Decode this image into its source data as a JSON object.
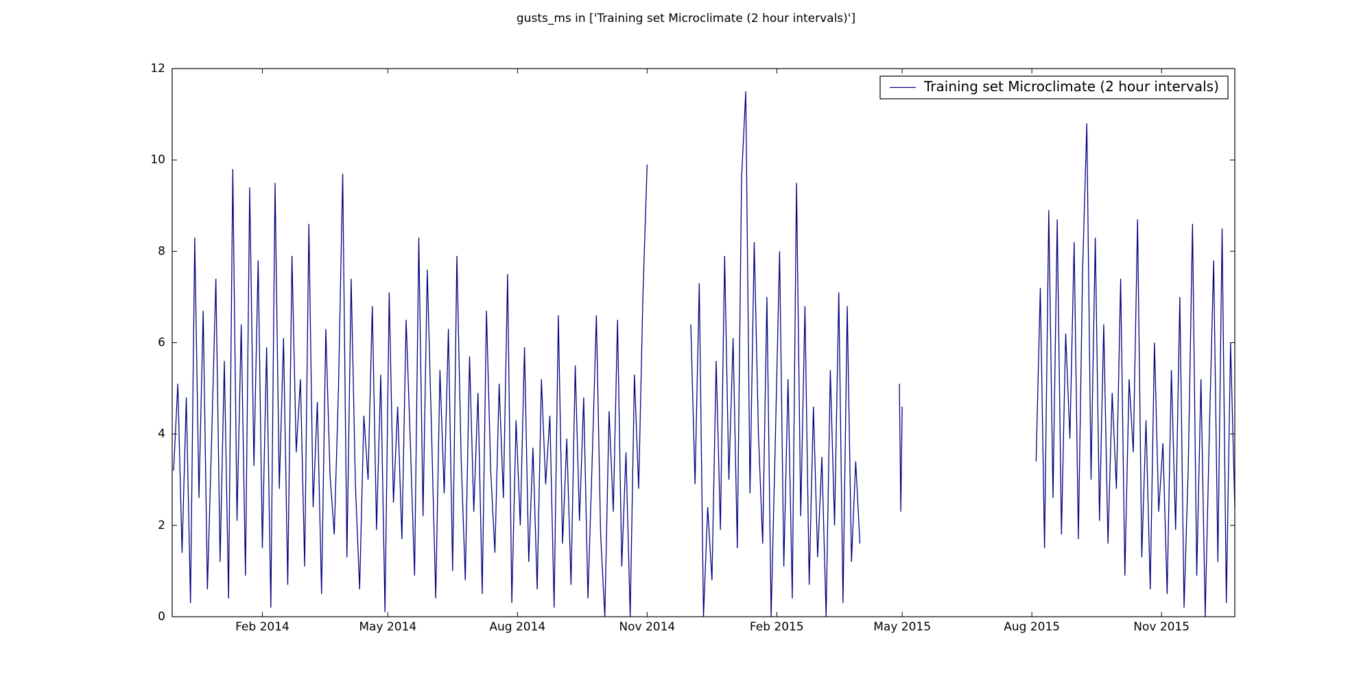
{
  "chart_data": {
    "type": "line",
    "title": "gusts_ms in ['Training set Microclimate (2 hour intervals)']",
    "x": [
      -63,
      -60,
      -57,
      -54,
      -51,
      -48,
      -45,
      -42,
      -39,
      -36,
      -33,
      -30,
      -27,
      -24,
      -21,
      -18,
      -15,
      -12,
      -9,
      -6,
      -3,
      0,
      3,
      6,
      9,
      12,
      15,
      18,
      21,
      24,
      27,
      30,
      33,
      36,
      39,
      42,
      45,
      48,
      51,
      54,
      57,
      60,
      63,
      66,
      69,
      72,
      75,
      78,
      81,
      84,
      87,
      90,
      93,
      96,
      99,
      102,
      105,
      108,
      111,
      114,
      117,
      120,
      123,
      126,
      129,
      132,
      135,
      138,
      141,
      144,
      147,
      150,
      153,
      156,
      159,
      162,
      165,
      168,
      171,
      174,
      177,
      180,
      183,
      186,
      189,
      192,
      195,
      198,
      201,
      204,
      207,
      210,
      213,
      216,
      219,
      222,
      225,
      228,
      231,
      234,
      237,
      240,
      243,
      246,
      249,
      252,
      255,
      258,
      261,
      264,
      267,
      270,
      273,
      290,
      304,
      307,
      310,
      313,
      316,
      319,
      322,
      325,
      328,
      331,
      334,
      337,
      340,
      343,
      346,
      349,
      352,
      355,
      358,
      361,
      364,
      367,
      370,
      373,
      376,
      379,
      382,
      385,
      388,
      391,
      394,
      397,
      400,
      403,
      406,
      409,
      412,
      415,
      418,
      421,
      424,
      440,
      452,
      453,
      454,
      500,
      549,
      552,
      555,
      558,
      561,
      564,
      567,
      570,
      573,
      576,
      579,
      582,
      585,
      588,
      591,
      594,
      597,
      600,
      603,
      606,
      609,
      612,
      615,
      618,
      621,
      624,
      627,
      630,
      633,
      636,
      639,
      642,
      645,
      648,
      651,
      654,
      657,
      660,
      663,
      666,
      669,
      672,
      675,
      678,
      681,
      684,
      687,
      690
    ],
    "series": [
      {
        "name": "Training set Microclimate (2 hour intervals)",
        "color": "#000080",
        "values": [
          3.2,
          5.1,
          1.4,
          4.8,
          0.3,
          8.3,
          2.6,
          6.7,
          0.6,
          3.9,
          7.4,
          1.2,
          5.6,
          0.4,
          9.8,
          2.1,
          6.4,
          0.9,
          9.4,
          3.3,
          7.8,
          1.5,
          5.9,
          0.2,
          9.5,
          2.8,
          6.1,
          0.7,
          7.9,
          3.6,
          5.2,
          1.1,
          8.6,
          2.4,
          4.7,
          0.5,
          6.3,
          3.1,
          1.8,
          5.0,
          9.7,
          1.3,
          7.4,
          2.9,
          0.6,
          4.4,
          3.0,
          6.8,
          1.9,
          5.3,
          0.1,
          7.1,
          2.5,
          4.6,
          1.7,
          6.5,
          3.8,
          0.9,
          8.3,
          2.2,
          7.6,
          4.1,
          0.4,
          5.4,
          2.7,
          6.3,
          1.0,
          7.9,
          3.5,
          0.8,
          5.7,
          2.3,
          4.9,
          0.5,
          6.7,
          3.2,
          1.4,
          5.1,
          2.6,
          7.5,
          0.3,
          4.3,
          2.0,
          5.9,
          1.2,
          3.7,
          0.6,
          5.2,
          2.9,
          4.4,
          0.2,
          6.6,
          1.6,
          3.9,
          0.7,
          5.5,
          2.1,
          4.8,
          0.4,
          3.4,
          6.6,
          1.8,
          0.0,
          4.5,
          2.3,
          6.5,
          1.1,
          3.6,
          0.0,
          5.3,
          2.8,
          7.0,
          9.9,
          null,
          6.4,
          2.9,
          7.3,
          0.0,
          2.4,
          0.8,
          5.6,
          1.9,
          7.9,
          3.0,
          6.1,
          1.5,
          9.6,
          11.5,
          2.7,
          8.2,
          4.0,
          1.6,
          7.0,
          0.0,
          3.9,
          8.0,
          1.1,
          5.2,
          0.4,
          9.5,
          2.2,
          6.8,
          0.7,
          4.6,
          1.3,
          3.5,
          0.0,
          5.4,
          2.0,
          7.1,
          0.3,
          6.8,
          1.2,
          3.4,
          1.6,
          null,
          5.1,
          2.3,
          4.6,
          null,
          3.4,
          7.2,
          1.5,
          8.9,
          2.6,
          8.7,
          1.8,
          6.2,
          3.9,
          8.2,
          1.7,
          7.6,
          10.8,
          3.0,
          8.3,
          2.1,
          6.4,
          1.6,
          4.9,
          2.8,
          7.4,
          0.9,
          5.2,
          3.6,
          8.7,
          1.3,
          4.3,
          0.6,
          6.0,
          2.3,
          3.8,
          0.5,
          5.4,
          1.9,
          7.0,
          0.2,
          3.3,
          8.6,
          0.9,
          5.2,
          0.0,
          4.1,
          7.8,
          1.2,
          8.5,
          0.3,
          6.0,
          2.4
        ]
      }
    ],
    "xlim": [
      -64,
      690
    ],
    "xticks": [
      {
        "value": 0,
        "label": "Feb 2014"
      },
      {
        "value": 89,
        "label": "May 2014"
      },
      {
        "value": 181,
        "label": "Aug 2014"
      },
      {
        "value": 273,
        "label": "Nov 2014"
      },
      {
        "value": 365,
        "label": "Feb 2015"
      },
      {
        "value": 454,
        "label": "May 2015"
      },
      {
        "value": 546,
        "label": "Aug 2015"
      },
      {
        "value": 638,
        "label": "Nov 2015"
      }
    ],
    "ylim": [
      0,
      12
    ],
    "yticks": [
      0,
      2,
      4,
      6,
      8,
      10,
      12
    ],
    "grid": false,
    "legend": "upper-right"
  }
}
